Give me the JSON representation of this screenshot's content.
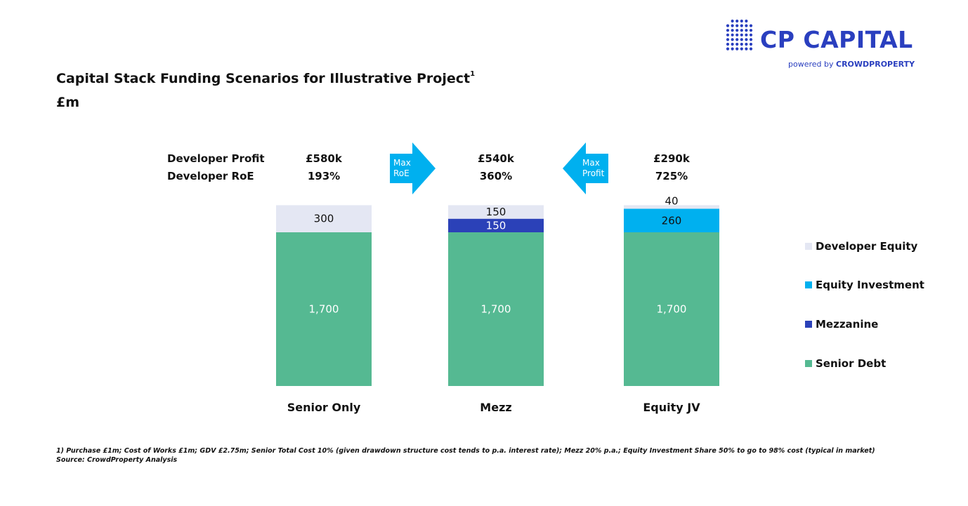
{
  "brand": {
    "name": "CP CAPITAL",
    "tagline_prefix": "powered by",
    "tagline_brand": "CROWDPROPERTY",
    "color": "#2a3fbf"
  },
  "header": {
    "title": "Capital Stack Funding Scenarios for Illustrative Project",
    "title_sup": "1",
    "subtitle": "£m"
  },
  "metrics": {
    "profit_label": "Developer Profit",
    "roe_label": "Developer RoE",
    "arrows": [
      {
        "line1": "Max",
        "line2": "RoE",
        "direction": "right"
      },
      {
        "line1": "Max",
        "line2": "Profit",
        "direction": "left"
      }
    ]
  },
  "chart_data": {
    "type": "bar",
    "stacked": true,
    "title": "Capital Stack Funding Scenarios for Illustrative Project",
    "ylabel": "£m",
    "categories": [
      "Senior Only",
      "Mezz",
      "Equity JV"
    ],
    "developer_profit": [
      "£580k",
      "£540k",
      "£290k"
    ],
    "developer_roe": [
      "193%",
      "360%",
      "725%"
    ],
    "series": [
      {
        "name": "Senior Debt",
        "values": [
          1700,
          1700,
          1700
        ],
        "labels": [
          "1,700",
          "1,700",
          "1,700"
        ],
        "color": "#55b992",
        "label_color": "#ffffff"
      },
      {
        "name": "Mezzanine",
        "values": [
          0,
          150,
          0
        ],
        "labels": [
          "",
          "150",
          ""
        ],
        "color": "#2b41b8",
        "label_color": "#ffffff"
      },
      {
        "name": "Equity Investment",
        "values": [
          0,
          0,
          260
        ],
        "labels": [
          "",
          "",
          "260"
        ],
        "color": "#00b0ef",
        "label_color": "#111111"
      },
      {
        "name": "Developer Equity",
        "values": [
          300,
          150,
          40
        ],
        "labels": [
          "300",
          "150",
          "40"
        ],
        "color": "#e4e7f3",
        "label_color": "#111111"
      }
    ],
    "legend": [
      {
        "name": "Developer Equity",
        "color": "#e4e7f3"
      },
      {
        "name": "Equity Investment",
        "color": "#00b0ef"
      },
      {
        "name": "Mezzanine",
        "color": "#2b41b8"
      },
      {
        "name": "Senior Debt",
        "color": "#55b992"
      }
    ],
    "legend_position": "right",
    "ylim": [
      0,
      2000
    ],
    "grid": false
  },
  "footnote": {
    "line1": "1) Purchase £1m; Cost of Works £1m; GDV £2.75m; Senior Total Cost 10% (given drawdown structure cost tends to p.a. interest rate); Mezz 20% p.a.; Equity Investment Share 50% to go to 98% cost (typical in market)",
    "line2": "Source: CrowdProperty Analysis"
  }
}
